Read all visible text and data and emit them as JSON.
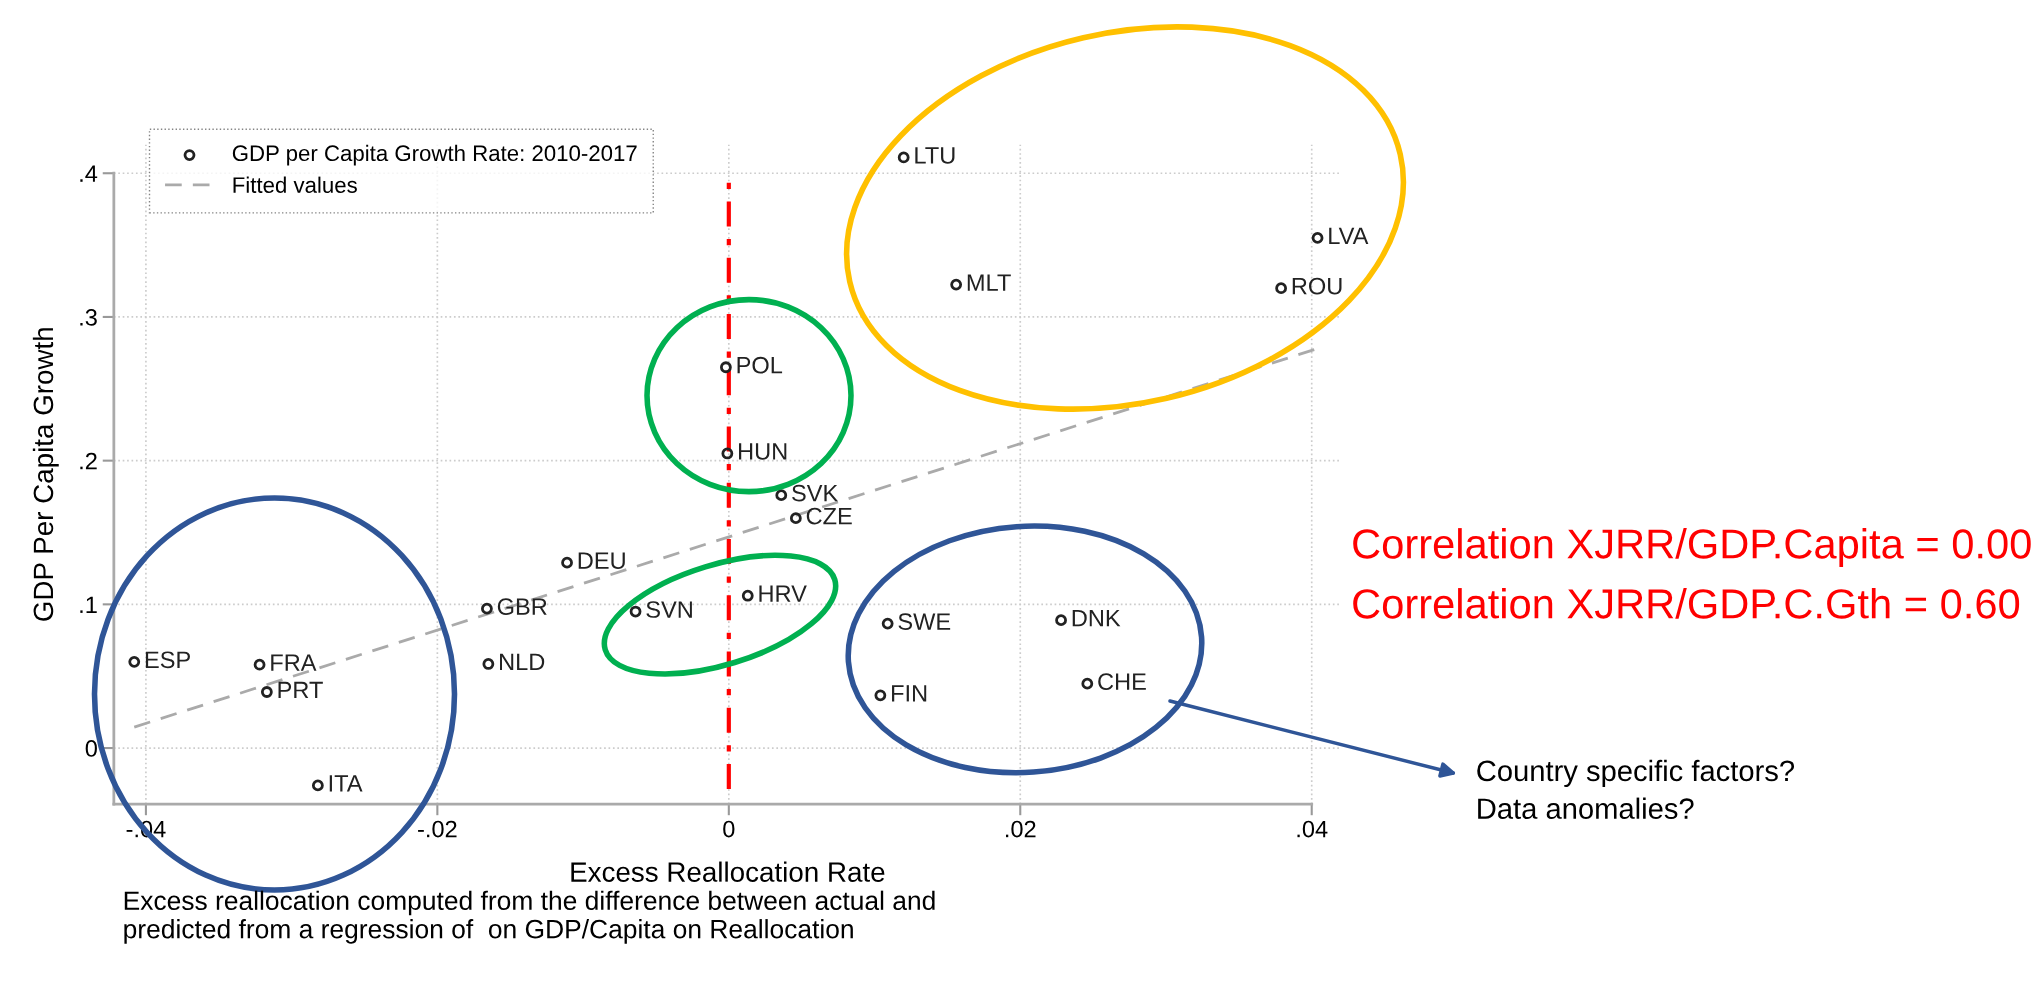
{
  "chart_data": {
    "type": "scatter",
    "xlabel": "Excess Reallocation Rate",
    "ylabel": "GDP Per Capita Growth",
    "xlim": [
      -0.0422,
      0.042
    ],
    "ylim": [
      -0.039,
      0.42
    ],
    "xticks": [
      {
        "value": -0.04,
        "label": "-.04"
      },
      {
        "value": -0.02,
        "label": "-.02"
      },
      0,
      {
        "value": 0.02,
        "label": ".02"
      },
      {
        "value": 0.04,
        "label": ".04"
      }
    ],
    "yticks": [
      0,
      {
        "value": 0.1,
        "label": ".1"
      },
      {
        "value": 0.2,
        "label": ".2"
      },
      {
        "value": 0.3,
        "label": ".3"
      },
      {
        "value": 0.4,
        "label": ".4"
      }
    ],
    "grid": true,
    "legend": "top left",
    "marker": "circle",
    "series": [
      {
        "name": "GDP per Capita Growth Rate: 2010-2017",
        "type": "scatter",
        "color": "#222222",
        "x": [
          -0.0408,
          -0.0322,
          -0.0317,
          -0.0282,
          -0.0166,
          -0.0165,
          -0.0111,
          -0.0064,
          0.0013,
          -0.0002,
          -0.0001,
          0.0036,
          0.0046,
          0.012,
          0.0156,
          0.0404,
          0.0379,
          0.0109,
          0.0228,
          0.0104,
          0.0246
        ],
        "values": [
          0.06,
          0.058,
          0.039,
          -0.026,
          0.097,
          0.0585,
          0.129,
          0.095,
          0.106,
          0.265,
          0.205,
          0.176,
          0.16,
          0.411,
          0.3225,
          0.355,
          0.32,
          0.0866,
          0.089,
          0.0367,
          0.0448
        ]
      },
      {
        "name": "Fitted values",
        "type": "line",
        "color": "#aaaaaa",
        "line_style": "dashed",
        "marker": "none",
        "x": [
          -0.0408,
          0.0404
        ],
        "values": [
          0.0146,
          0.278
        ]
      }
    ],
    "ref_lines": [
      {
        "axis": "x",
        "value": 0,
        "color": "#ff0000",
        "line_style": "dashdot"
      }
    ],
    "annotations": [
      {
        "text": "ESP",
        "x": -0.0408,
        "y": 0.06
      },
      {
        "text": "FRA",
        "x": -0.0322,
        "y": 0.058
      },
      {
        "text": "PRT",
        "x": -0.0317,
        "y": 0.039
      },
      {
        "text": "ITA",
        "x": -0.0282,
        "y": -0.026
      },
      {
        "text": "GBR",
        "x": -0.0166,
        "y": 0.097
      },
      {
        "text": "NLD",
        "x": -0.0165,
        "y": 0.0585
      },
      {
        "text": "DEU",
        "x": -0.0111,
        "y": 0.129
      },
      {
        "text": "SVN",
        "x": -0.0064,
        "y": 0.095
      },
      {
        "text": "HRV",
        "x": 0.0013,
        "y": 0.106
      },
      {
        "text": "POL",
        "x": -0.0002,
        "y": 0.265
      },
      {
        "text": "HUN",
        "x": -0.0001,
        "y": 0.205
      },
      {
        "text": "SVK",
        "x": 0.0036,
        "y": 0.176
      },
      {
        "text": "CZE",
        "x": 0.0046,
        "y": 0.16
      },
      {
        "text": "LTU",
        "x": 0.012,
        "y": 0.411
      },
      {
        "text": "MLT",
        "x": 0.0156,
        "y": 0.3225
      },
      {
        "text": "LVA",
        "x": 0.0404,
        "y": 0.355
      },
      {
        "text": "ROU",
        "x": 0.0379,
        "y": 0.32
      },
      {
        "text": "SWE",
        "x": 0.0109,
        "y": 0.0866
      },
      {
        "text": "DNK",
        "x": 0.0228,
        "y": 0.089
      },
      {
        "text": "FIN",
        "x": 0.0104,
        "y": 0.0367
      },
      {
        "text": "CHE",
        "x": 0.0246,
        "y": 0.0448
      },
      "Excess reallocation computed from the difference between actual and\npredicted from a regression of  on GDP/Capita on Reallocation",
      "Correlation XJRR/GDP.Capita = 0.00",
      "Correlation XJRR/GDP.C.Gth = 0.60",
      "Country specific factors?\nData anomalies?"
    ]
  }
}
